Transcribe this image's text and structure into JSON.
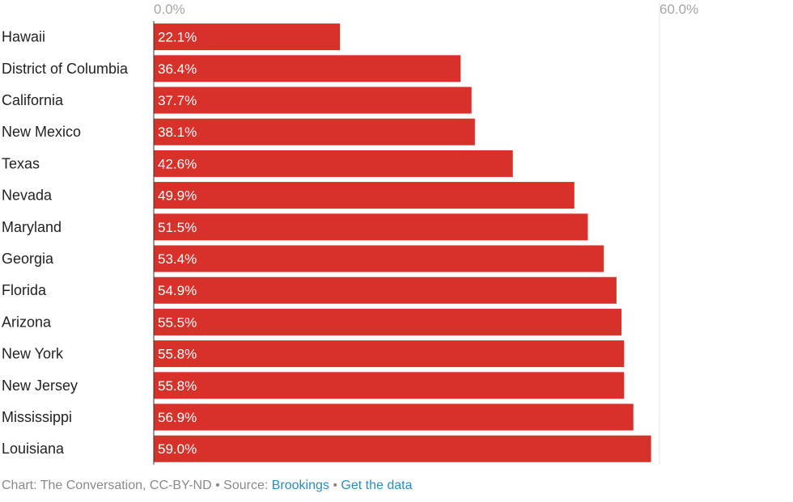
{
  "colors": {
    "bar": "#d7312a",
    "gridline": "#e6e6e6",
    "axis": "#333333",
    "link": "#2b8cc4"
  },
  "chart_data": {
    "type": "bar",
    "orientation": "horizontal",
    "categories": [
      "Hawaii",
      "District of Columbia",
      "California",
      "New Mexico",
      "Texas",
      "Nevada",
      "Maryland",
      "Georgia",
      "Florida",
      "Arizona",
      "New York",
      "New Jersey",
      "Mississippi",
      "Louisiana"
    ],
    "values": [
      22.1,
      36.4,
      37.7,
      38.1,
      42.6,
      49.9,
      51.5,
      53.4,
      54.9,
      55.5,
      55.8,
      55.8,
      56.9,
      59.0
    ],
    "data_labels": [
      "22.1%",
      "36.4%",
      "37.7%",
      "38.1%",
      "42.6%",
      "49.9%",
      "51.5%",
      "53.4%",
      "54.9%",
      "55.5%",
      "55.8%",
      "55.8%",
      "56.9%",
      "59.0%"
    ],
    "xlim": [
      0,
      60
    ],
    "x_ticks": [
      0,
      60
    ],
    "x_tick_labels": [
      "0.0%",
      "60.0%"
    ],
    "grid": true,
    "legend": "none",
    "title": "",
    "xlabel": "",
    "ylabel": ""
  },
  "footer": {
    "credit": "Chart: The Conversation, CC-BY-ND",
    "separator": " • ",
    "source_prefix": "Source: ",
    "source_link": "Brookings",
    "get_data_link": "Get the data"
  }
}
